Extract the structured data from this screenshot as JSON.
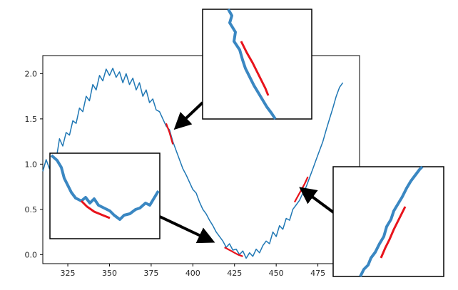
{
  "chart_data": {
    "type": "line",
    "title": "",
    "xlabel": "",
    "ylabel": "",
    "xlim": [
      310,
      500
    ],
    "ylim": [
      -0.1,
      2.2
    ],
    "xticks": [
      325,
      350,
      375,
      400,
      425,
      450,
      475
    ],
    "yticks": [
      0.0,
      0.5,
      1.0,
      1.5,
      2.0
    ],
    "xtick_labels": [
      "325",
      "350",
      "375",
      "400",
      "425",
      "450",
      "475"
    ],
    "ytick_labels": [
      "0.0",
      "0.5",
      "1.0",
      "1.5",
      "2.0"
    ],
    "grid": false,
    "series": [
      {
        "color": "#1f77b4",
        "x": [
          310,
          312,
          314,
          316,
          318,
          320,
          322,
          324,
          326,
          328,
          330,
          332,
          334,
          336,
          338,
          340,
          342,
          344,
          346,
          348,
          350,
          352,
          354,
          356,
          358,
          360,
          362,
          364,
          366,
          368,
          370,
          372,
          374,
          376,
          378,
          380,
          382,
          384,
          386,
          388,
          390,
          392,
          394,
          396,
          398,
          400,
          402,
          404,
          406,
          408,
          410,
          412,
          414,
          416,
          418,
          420,
          422,
          424,
          426,
          428,
          430,
          432,
          434,
          436,
          438,
          440,
          442,
          444,
          446,
          448,
          450,
          452,
          454,
          456,
          458,
          460,
          462,
          464,
          466,
          468,
          470,
          472,
          474,
          476,
          478,
          480,
          482,
          484,
          486,
          488,
          490
        ],
        "y": [
          0.92,
          1.05,
          0.95,
          1.12,
          1.05,
          1.28,
          1.2,
          1.35,
          1.32,
          1.48,
          1.45,
          1.62,
          1.58,
          1.75,
          1.7,
          1.88,
          1.82,
          1.98,
          1.92,
          2.05,
          1.98,
          2.06,
          1.96,
          2.02,
          1.9,
          2.0,
          1.88,
          1.95,
          1.82,
          1.9,
          1.75,
          1.82,
          1.68,
          1.72,
          1.6,
          1.58,
          1.5,
          1.42,
          1.38,
          1.25,
          1.15,
          1.05,
          0.95,
          0.88,
          0.8,
          0.72,
          0.68,
          0.58,
          0.5,
          0.45,
          0.38,
          0.32,
          0.25,
          0.2,
          0.15,
          0.08,
          0.12,
          0.05,
          0.06,
          0.0,
          0.04,
          -0.04,
          0.02,
          -0.02,
          0.06,
          0.02,
          0.1,
          0.15,
          0.12,
          0.25,
          0.2,
          0.32,
          0.28,
          0.4,
          0.38,
          0.5,
          0.55,
          0.6,
          0.68,
          0.75,
          0.85,
          0.95,
          1.05,
          1.15,
          1.25,
          1.38,
          1.5,
          1.62,
          1.75,
          1.85,
          1.9
        ]
      },
      {
        "color": "#e8131b",
        "x": [
          384,
          386,
          388
        ],
        "y": [
          1.45,
          1.35,
          1.22
        ]
      },
      {
        "color": "#e8131b",
        "x": [
          419,
          423,
          427,
          430
        ],
        "y": [
          0.08,
          0.04,
          0.0,
          -0.02
        ]
      },
      {
        "color": "#e8131b",
        "x": [
          461,
          464,
          467,
          469
        ],
        "y": [
          0.58,
          0.68,
          0.78,
          0.86
        ]
      }
    ]
  }
}
